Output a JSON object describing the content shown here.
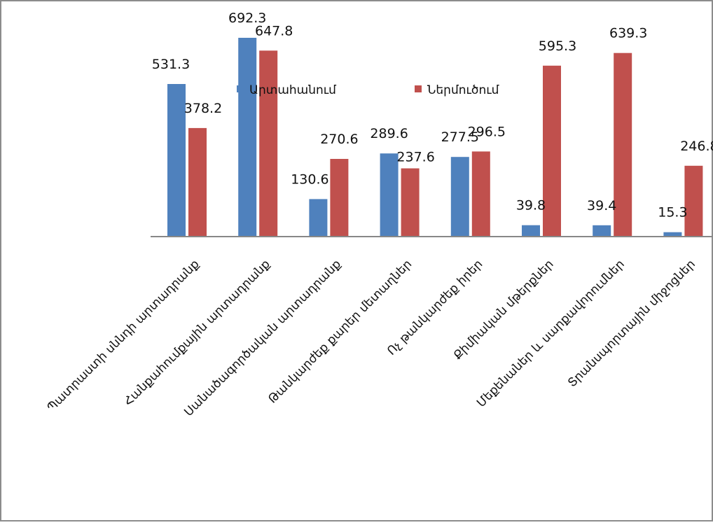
{
  "chart_data": {
    "type": "bar",
    "categories": [
      "Պատրաստի սննդի արտադրանք",
      "Հանքահումքային արտադրանք",
      "Սանածագործական արտադրանք",
      "Թանկարժեք քարեր մետաղներ",
      "Ոչ թանկարժեք իրեր",
      "Քիմիական մթերքներ",
      "Մեքենաներ և սարքավորումներ",
      "Տրանսպորտային միջոցներ"
    ],
    "series": [
      {
        "name": "Արտահանում",
        "values": [
          531.3,
          692.3,
          130.6,
          289.6,
          277.5,
          39.8,
          39.4,
          15.3
        ]
      },
      {
        "name": "Ներմուծում",
        "values": [
          378.2,
          647.8,
          270.6,
          237.6,
          296.5,
          595.3,
          639.3,
          246.8
        ]
      }
    ],
    "ylim": [
      0,
      750
    ],
    "grid": false,
    "legend_position": "top-center",
    "colors": {
      "export": "#4f81bd",
      "import": "#c0504d",
      "axis": "#878787",
      "border": "#8c8c8c"
    }
  }
}
